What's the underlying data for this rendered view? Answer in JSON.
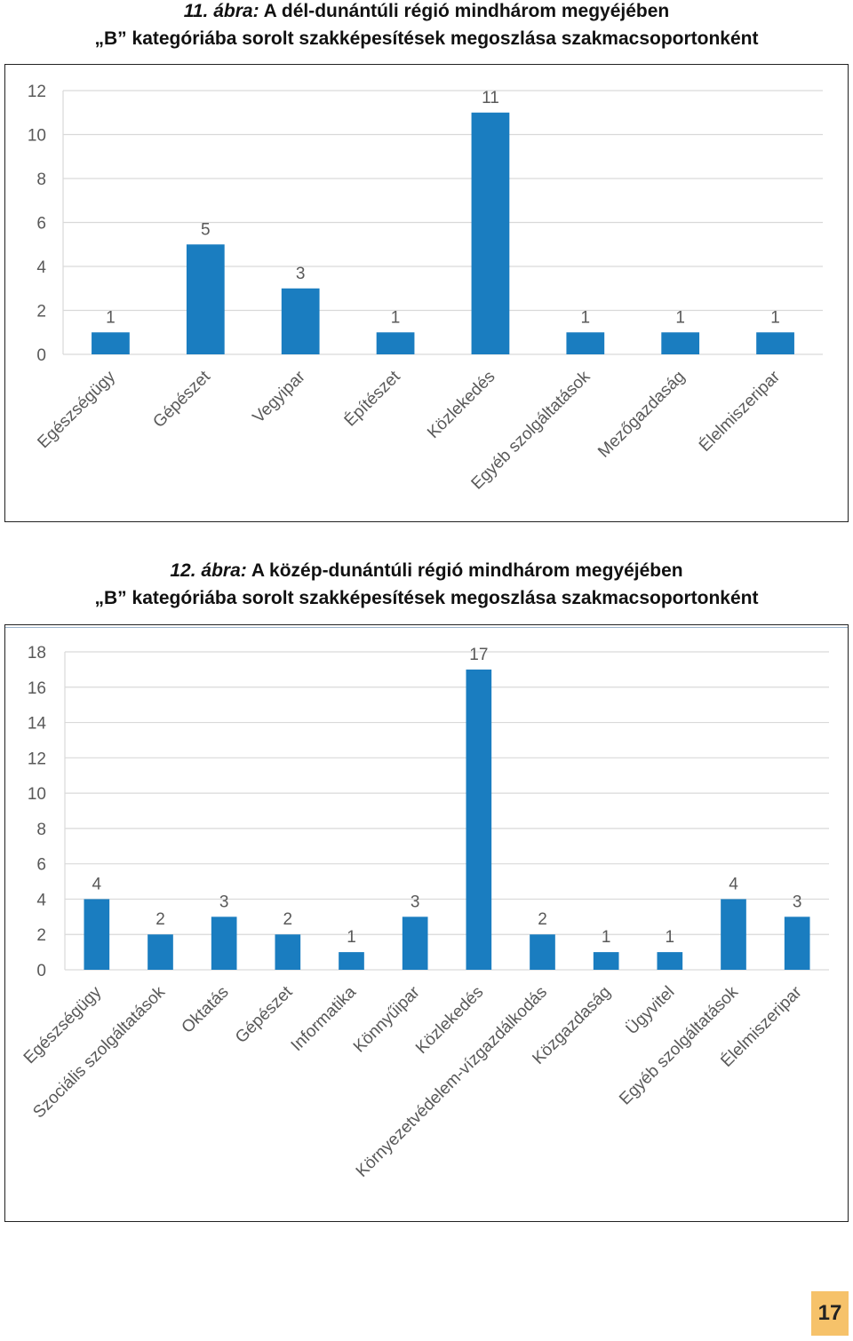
{
  "figures": [
    {
      "label": "11. ábra:",
      "line1": "A dél-dunántúli régió mindhárom megyéjében",
      "line2": "„B” kategóriába sorolt szakképesítések megoszlása szakmacsoportonként"
    },
    {
      "label": "12. ábra:",
      "line1": "A közép-dunántúli régió mindhárom megyéjében",
      "line2": "„B” kategóriába sorolt szakképesítések megoszlása szakmacsoportonként"
    }
  ],
  "page_number": "17",
  "colors": {
    "bar": "#1a7dc0",
    "grid": "#d9d9d9",
    "text": "#595959"
  },
  "chart_data": [
    {
      "type": "bar",
      "categories": [
        "Egészségügy",
        "Gépészet",
        "Vegyipar",
        "Építészet",
        "Közlekedés",
        "Egyéb szolgáltatások",
        "Mezőgazdaság",
        "Élelmiszeripar"
      ],
      "values": [
        1,
        5,
        3,
        1,
        11,
        1,
        1,
        1
      ],
      "ylim": [
        0,
        12
      ],
      "yticks": [
        0,
        2,
        4,
        6,
        8,
        10,
        12
      ],
      "grid": true,
      "legend": "none",
      "data_labels": true
    },
    {
      "type": "bar",
      "categories": [
        "Egészségügy",
        "Szociális szolgáltatások",
        "Oktatás",
        "Gépészet",
        "Informatika",
        "Könnyűipar",
        "Közlekedés",
        "Környezetvédelem-vízgazdálkodás",
        "Közgazdaság",
        "Ügyvitel",
        "Egyéb szolgáltatások",
        "Élelmiszeripar"
      ],
      "values": [
        4,
        2,
        3,
        2,
        1,
        3,
        17,
        2,
        1,
        1,
        4,
        3
      ],
      "ylim": [
        0,
        18
      ],
      "yticks": [
        0,
        2,
        4,
        6,
        8,
        10,
        12,
        14,
        16,
        18
      ],
      "grid": true,
      "legend": "none",
      "data_labels": true
    }
  ]
}
